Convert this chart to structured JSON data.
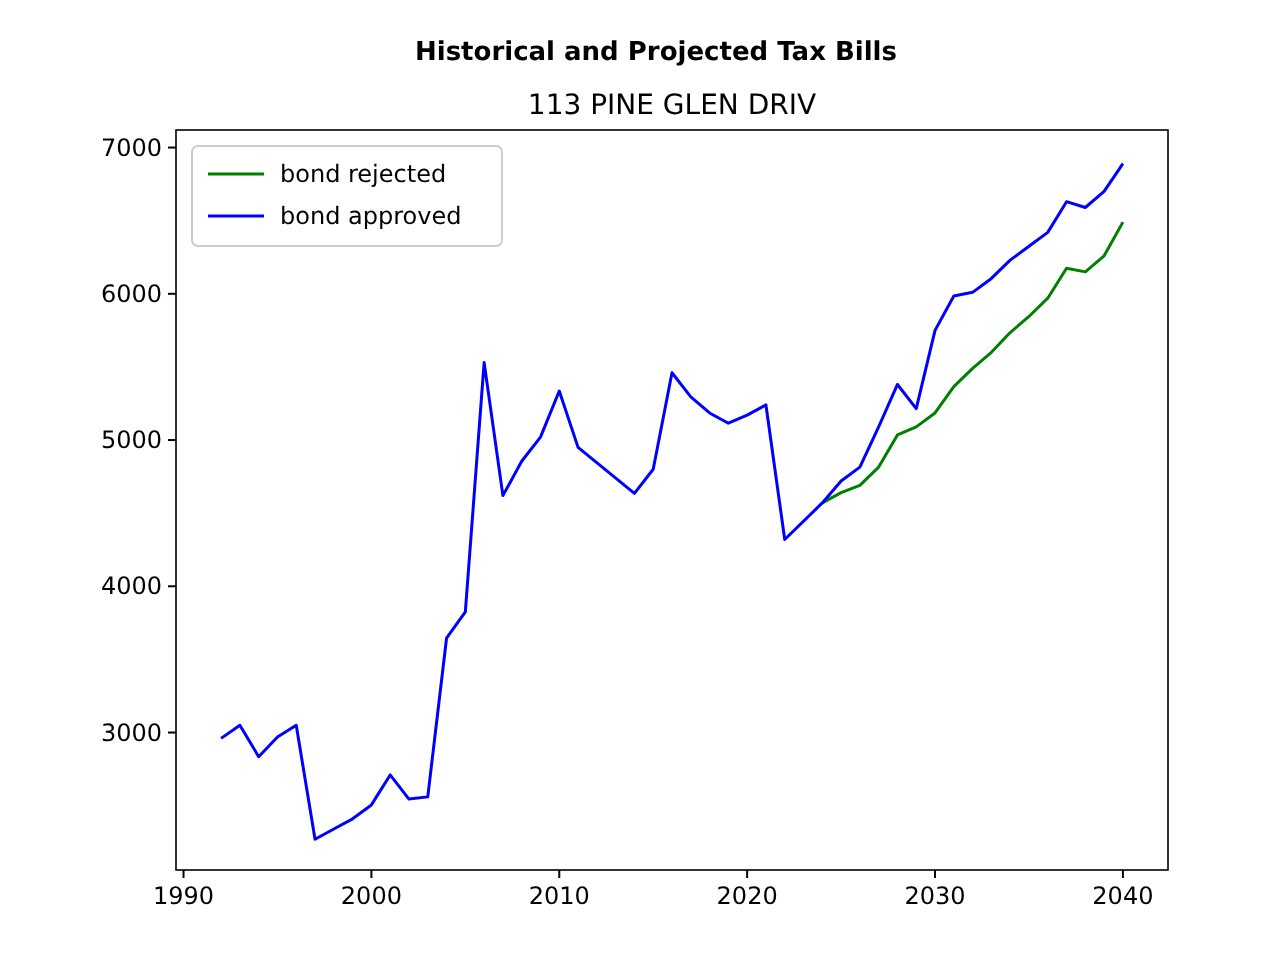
{
  "chart_data": {
    "type": "line",
    "title": "Historical and Projected Tax Bills",
    "subtitle": "113 PINE GLEN DRIV",
    "xlim": [
      1989.6,
      2042.4
    ],
    "xticks": [
      1990,
      2000,
      2010,
      2020,
      2030,
      2040
    ],
    "ylim": [
      2060,
      7120
    ],
    "yticks": [
      3000,
      4000,
      5000,
      6000,
      7000
    ],
    "legend": "top left",
    "grid": false,
    "series": [
      {
        "name": "bond rejected",
        "color": "#008000",
        "x": [
          2024,
          2025,
          2026,
          2027,
          2028,
          2029,
          2030,
          2031,
          2032,
          2033,
          2034,
          2035,
          2036,
          2037,
          2038,
          2039,
          2040
        ],
        "values": [
          4570,
          4640,
          4690,
          4815,
          5035,
          5090,
          5185,
          5365,
          5490,
          5600,
          5735,
          5845,
          5970,
          6175,
          6150,
          6260,
          6490
        ]
      },
      {
        "name": "bond approved",
        "color": "#0000ff",
        "x": [
          1992,
          1993,
          1994,
          1995,
          1996,
          1997,
          1998,
          1999,
          2000,
          2001,
          2002,
          2003,
          2004,
          2005,
          2006,
          2007,
          2008,
          2009,
          2010,
          2011,
          2014,
          2015,
          2016,
          2017,
          2018,
          2019,
          2020,
          2021,
          2022,
          2024,
          2025,
          2026,
          2027,
          2028,
          2029,
          2030,
          2031,
          2032,
          2033,
          2034,
          2035,
          2036,
          2037,
          2038,
          2039,
          2040
        ],
        "values": [
          2960,
          3050,
          2835,
          2970,
          3050,
          2270,
          2340,
          2410,
          2505,
          2710,
          2545,
          2560,
          3645,
          3825,
          5530,
          4620,
          4855,
          5020,
          5335,
          4950,
          4635,
          4800,
          5460,
          5295,
          5185,
          5115,
          5170,
          5240,
          4320,
          4570,
          4720,
          4815,
          5090,
          5380,
          5215,
          5750,
          5985,
          6010,
          6105,
          6230,
          6325,
          6420,
          6630,
          6590,
          6700,
          6890
        ]
      }
    ]
  }
}
